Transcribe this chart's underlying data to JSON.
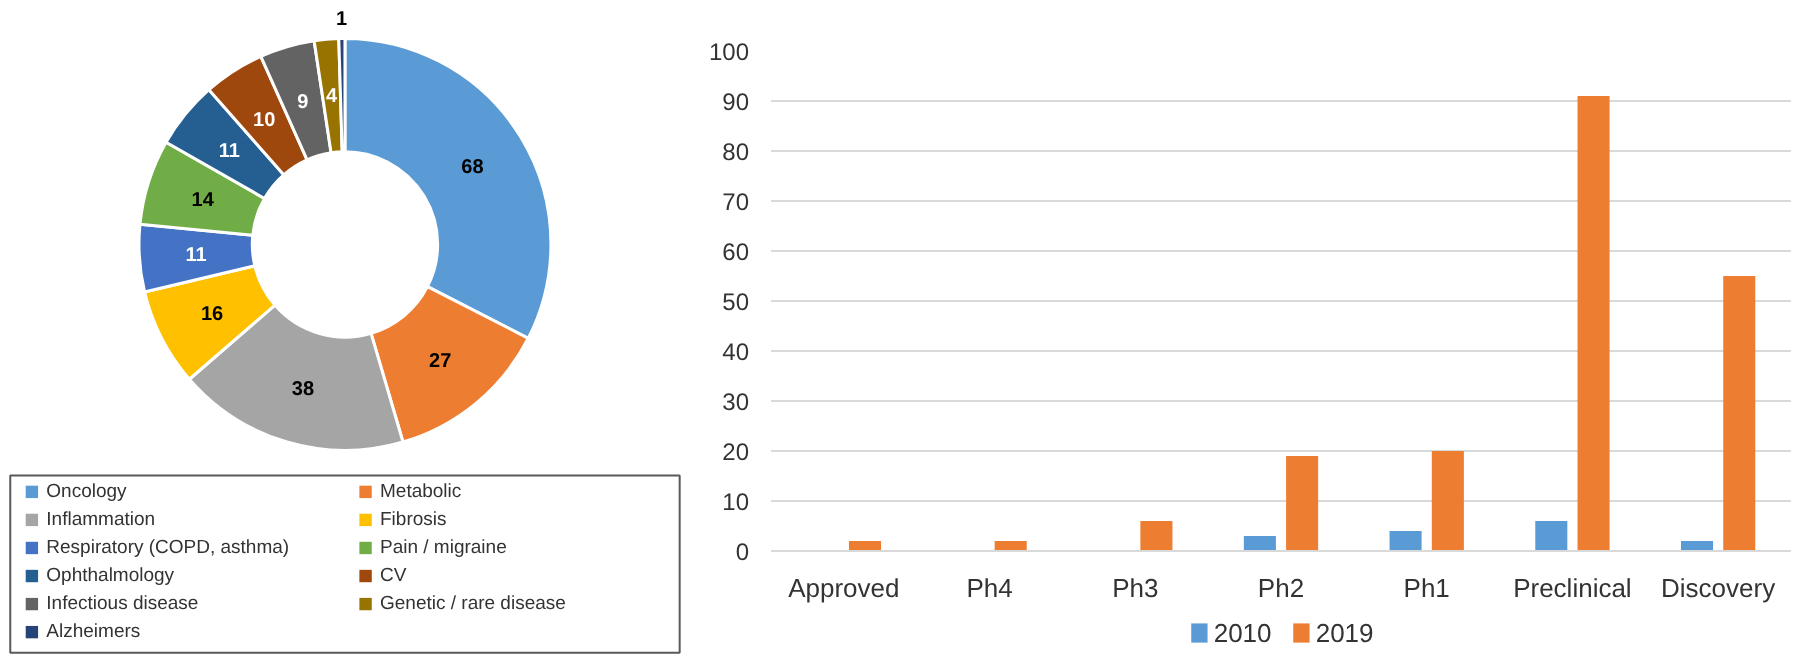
{
  "chart_data": [
    {
      "type": "donut",
      "categories": [
        "Oncology",
        "Metabolic",
        "Inflammation",
        "Fibrosis",
        "Respiratory (COPD, asthma)",
        "Pain / migraine",
        "Ophthalmology",
        "CV",
        "Infectious disease",
        "Genetic / rare disease",
        "Alzheimers"
      ],
      "values": [
        68,
        27,
        38,
        16,
        11,
        14,
        11,
        10,
        9,
        4,
        1
      ],
      "colors": [
        "#5b9bd5",
        "#ed7d31",
        "#a5a5a5",
        "#ffc000",
        "#4472c4",
        "#70ad47",
        "#255e91",
        "#9e480e",
        "#636363",
        "#997300",
        "#264478"
      ],
      "data_labels": true,
      "legend": "bottom"
    },
    {
      "type": "bar",
      "categories": [
        "Approved",
        "Ph4",
        "Ph3",
        "Ph2",
        "Ph1",
        "Preclinical",
        "Discovery"
      ],
      "series": [
        {
          "name": "2010",
          "color": "#5b9bd5",
          "values": [
            0,
            0,
            0,
            3,
            4,
            6,
            2
          ]
        },
        {
          "name": "2019",
          "color": "#ed7d31",
          "values": [
            2,
            2,
            6,
            19,
            20,
            91,
            55
          ]
        }
      ],
      "ylim": [
        0,
        100
      ],
      "yticks": [
        0,
        10,
        20,
        30,
        40,
        50,
        60,
        70,
        80,
        90,
        100
      ],
      "grid": "y",
      "legend": "bottom"
    }
  ]
}
